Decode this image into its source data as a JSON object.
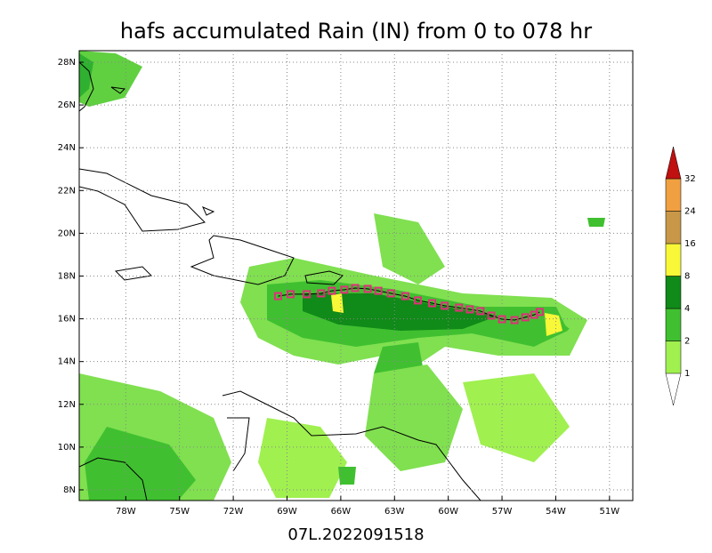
{
  "chart_data": {
    "type": "map",
    "title": "hafs accumulated Rain (IN) from 0 to 078 hr",
    "xlabel": "07L.2022091518",
    "xlim": [
      -80.6,
      -49.7
    ],
    "ylim": [
      7.5,
      28.54
    ],
    "xticks": [
      {
        "value": -78,
        "label": "78W"
      },
      {
        "value": -75,
        "label": "75W"
      },
      {
        "value": -72,
        "label": "72W"
      },
      {
        "value": -69,
        "label": "69W"
      },
      {
        "value": -66,
        "label": "66W"
      },
      {
        "value": -63,
        "label": "63W"
      },
      {
        "value": -60,
        "label": "60W"
      },
      {
        "value": -57,
        "label": "57W"
      },
      {
        "value": -54,
        "label": "54W"
      },
      {
        "value": -51,
        "label": "51W"
      }
    ],
    "yticks": [
      {
        "value": 8,
        "label": "8N"
      },
      {
        "value": 10,
        "label": "10N"
      },
      {
        "value": 12,
        "label": "12N"
      },
      {
        "value": 14,
        "label": "14N"
      },
      {
        "value": 16,
        "label": "16N"
      },
      {
        "value": 18,
        "label": "18N"
      },
      {
        "value": 20,
        "label": "20N"
      },
      {
        "value": 22,
        "label": "22N"
      },
      {
        "value": 24,
        "label": "24N"
      },
      {
        "value": 26,
        "label": "26N"
      },
      {
        "value": 28,
        "label": "28N"
      }
    ],
    "grid": true,
    "track": {
      "color": "#e0307a",
      "lon": [
        -69.5,
        -68.8,
        -67.9,
        -67.1,
        -66.5,
        -65.8,
        -65.2,
        -64.5,
        -63.9,
        -63.2,
        -62.4,
        -61.7,
        -60.9,
        -60.2,
        -59.4,
        -58.8,
        -58.2,
        -57.6,
        -57.0,
        -56.3,
        -55.7,
        -55.2,
        -54.9
      ],
      "lat": [
        17.06,
        17.15,
        17.15,
        17.19,
        17.31,
        17.36,
        17.44,
        17.4,
        17.31,
        17.19,
        17.06,
        16.86,
        16.73,
        16.61,
        16.52,
        16.44,
        16.36,
        16.15,
        15.98,
        15.94,
        16.07,
        16.19,
        16.32
      ]
    },
    "colorbar": {
      "levels": [
        1,
        2,
        4,
        8,
        16,
        24,
        32
      ],
      "colors": [
        "#a0f050",
        "#40c030",
        "#108a18",
        "#f8f838",
        "#c89848",
        "#f0a040",
        "#c01010"
      ]
    }
  }
}
